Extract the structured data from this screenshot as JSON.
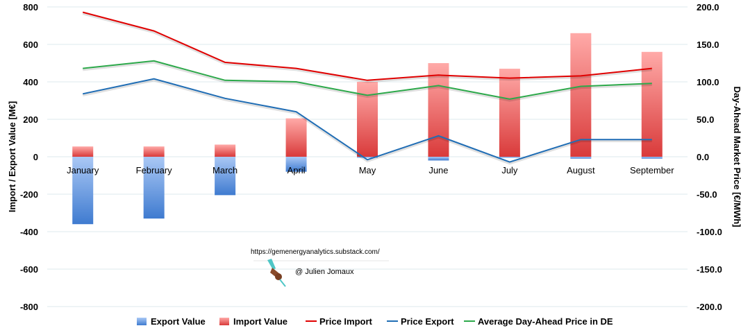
{
  "chart_data": {
    "type": "bar",
    "categories": [
      "January",
      "February",
      "March",
      "April",
      "May",
      "June",
      "July",
      "August",
      "September"
    ],
    "series": [
      {
        "name": "Export Value",
        "kind": "bar",
        "axis": "left",
        "color": "#4a86d8",
        "values": [
          -360,
          -330,
          -205,
          -80,
          -5,
          -20,
          -5,
          -10,
          -10
        ]
      },
      {
        "name": "Import Value",
        "kind": "bar",
        "axis": "left",
        "color": "#e8504f",
        "values": [
          55,
          55,
          65,
          205,
          400,
          500,
          470,
          660,
          560
        ]
      },
      {
        "name": "Price Import",
        "kind": "line",
        "axis": "right",
        "color": "#e00000",
        "values": [
          193,
          168,
          126,
          118,
          102,
          109,
          105,
          108,
          118
        ]
      },
      {
        "name": "Price Export",
        "kind": "line",
        "axis": "right",
        "color": "#1f6db5",
        "values": [
          84,
          104,
          78,
          60,
          -4,
          28,
          -7,
          23,
          23
        ]
      },
      {
        "name": "Average Day-Ahead Price in DE",
        "kind": "line",
        "axis": "right",
        "color": "#2ca94a",
        "values": [
          118,
          128,
          102,
          100,
          82,
          95,
          77,
          94,
          98
        ]
      }
    ],
    "y_left": {
      "label": "Import / Export Value [M€]",
      "ylim": [
        -800,
        800
      ],
      "ticks": [
        "800",
        "600",
        "400",
        "200",
        "0",
        "-200",
        "-400",
        "-600",
        "-800"
      ]
    },
    "y_right": {
      "label": "Day-Ahead Market Price [€/MWh]",
      "ylim": [
        -200,
        200
      ],
      "ticks": [
        "200.0",
        "150.0",
        "100.0",
        "50.0",
        "0.0",
        "-50.0",
        "-100.0",
        "-150.0",
        "-200.0"
      ]
    },
    "grid": true,
    "legend_position": "bottom"
  },
  "watermark": {
    "url": "https://gemenergyanalytics.substack.com/",
    "author": "@ Julien Jomaux"
  }
}
